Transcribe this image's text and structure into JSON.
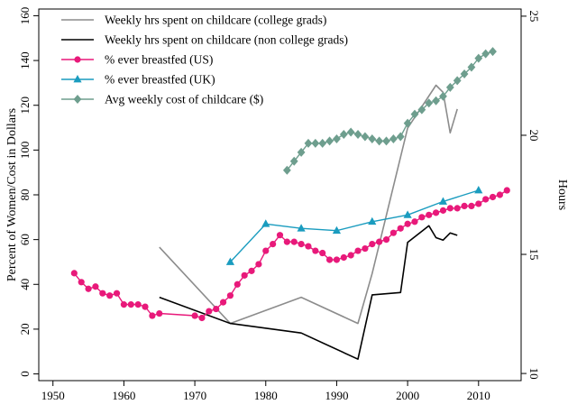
{
  "chart_data": {
    "type": "line",
    "xlabel": "",
    "ylabel_left": "Percent of Women/Cost in Dollars",
    "ylabel_right": "Hours",
    "xlim": [
      1948,
      2016
    ],
    "ylim_left": [
      -3,
      163
    ],
    "ylim_right": [
      9.7,
      25.3
    ],
    "x_ticks": [
      1950,
      1960,
      1970,
      1980,
      1990,
      2000,
      2010
    ],
    "y_ticks_left": [
      0,
      20,
      40,
      60,
      80,
      100,
      120,
      140,
      160
    ],
    "y_ticks_right": [
      10,
      15,
      20,
      25
    ],
    "legend_position": "top-left",
    "grid": false,
    "series": [
      {
        "name": "Weekly hrs spent on childcare (college grads)",
        "axis": "right",
        "color": "#8c8c8c",
        "marker": "none",
        "points": [
          [
            1965,
            15.3
          ],
          [
            1975,
            12.1
          ],
          [
            1985,
            13.2
          ],
          [
            1993,
            12.1
          ],
          [
            1995,
            14.2
          ],
          [
            2000,
            20.3
          ],
          [
            2004,
            22.1
          ],
          [
            2005,
            21.8
          ],
          [
            2006,
            20.1
          ],
          [
            2007,
            21.1
          ]
        ]
      },
      {
        "name": "Weekly hrs spent on childcare (non college grads)",
        "axis": "right",
        "color": "#000000",
        "marker": "none",
        "points": [
          [
            1965,
            13.2
          ],
          [
            1975,
            12.1
          ],
          [
            1985,
            11.7
          ],
          [
            1993,
            10.6
          ],
          [
            1995,
            13.3
          ],
          [
            1999,
            13.4
          ],
          [
            2000,
            15.5
          ],
          [
            2003,
            16.2
          ],
          [
            2004,
            15.7
          ],
          [
            2005,
            15.6
          ],
          [
            2006,
            15.9
          ],
          [
            2007,
            15.8
          ]
        ]
      },
      {
        "name": "% ever breastfed (US)",
        "axis": "left",
        "color": "#e8197a",
        "marker": "circle",
        "points": [
          [
            1953,
            45
          ],
          [
            1954,
            41
          ],
          [
            1955,
            38
          ],
          [
            1956,
            39
          ],
          [
            1957,
            36
          ],
          [
            1958,
            35
          ],
          [
            1959,
            36
          ],
          [
            1960,
            31
          ],
          [
            1961,
            31
          ],
          [
            1962,
            31
          ],
          [
            1963,
            30
          ],
          [
            1964,
            26
          ],
          [
            1965,
            27
          ],
          [
            1970,
            26
          ],
          [
            1971,
            25
          ],
          [
            1972,
            28
          ],
          [
            1973,
            29
          ],
          [
            1974,
            32
          ],
          [
            1975,
            35
          ],
          [
            1976,
            40
          ],
          [
            1977,
            44
          ],
          [
            1978,
            46
          ],
          [
            1979,
            49
          ],
          [
            1980,
            55
          ],
          [
            1981,
            58
          ],
          [
            1982,
            62
          ],
          [
            1983,
            59
          ],
          [
            1984,
            59
          ],
          [
            1985,
            58
          ],
          [
            1986,
            57
          ],
          [
            1987,
            55
          ],
          [
            1988,
            54
          ],
          [
            1989,
            51
          ],
          [
            1990,
            51
          ],
          [
            1991,
            52
          ],
          [
            1992,
            53
          ],
          [
            1993,
            55
          ],
          [
            1994,
            56
          ],
          [
            1995,
            58
          ],
          [
            1996,
            59
          ],
          [
            1997,
            60
          ],
          [
            1998,
            63
          ],
          [
            1999,
            65
          ],
          [
            2000,
            67
          ],
          [
            2001,
            68
          ],
          [
            2002,
            70
          ],
          [
            2003,
            71
          ],
          [
            2004,
            72
          ],
          [
            2005,
            73
          ],
          [
            2006,
            74
          ],
          [
            2007,
            74
          ],
          [
            2008,
            75
          ],
          [
            2009,
            75
          ],
          [
            2010,
            76
          ],
          [
            2011,
            78
          ],
          [
            2012,
            79
          ],
          [
            2013,
            80
          ],
          [
            2014,
            82
          ]
        ]
      },
      {
        "name": "% ever breastfed (UK)",
        "axis": "left",
        "color": "#1a9cbf",
        "marker": "triangle",
        "points": [
          [
            1975,
            50
          ],
          [
            1980,
            67
          ],
          [
            1985,
            65
          ],
          [
            1990,
            64
          ],
          [
            1995,
            68
          ],
          [
            2000,
            71
          ],
          [
            2005,
            77
          ],
          [
            2010,
            82
          ]
        ]
      },
      {
        "name": "Avg weekly cost of childcare ($)",
        "axis": "left",
        "color": "#6e9e8e",
        "marker": "diamond",
        "points": [
          [
            1983,
            91
          ],
          [
            1984,
            95
          ],
          [
            1985,
            99
          ],
          [
            1986,
            103
          ],
          [
            1987,
            103
          ],
          [
            1988,
            103
          ],
          [
            1989,
            104
          ],
          [
            1990,
            105
          ],
          [
            1991,
            107
          ],
          [
            1992,
            108
          ],
          [
            1993,
            107
          ],
          [
            1994,
            106
          ],
          [
            1995,
            105
          ],
          [
            1996,
            104
          ],
          [
            1997,
            104
          ],
          [
            1998,
            105
          ],
          [
            1999,
            106
          ],
          [
            2000,
            112
          ],
          [
            2001,
            116
          ],
          [
            2002,
            118
          ],
          [
            2003,
            121
          ],
          [
            2004,
            122
          ],
          [
            2005,
            124
          ],
          [
            2006,
            128
          ],
          [
            2007,
            131
          ],
          [
            2008,
            134
          ],
          [
            2009,
            137
          ],
          [
            2010,
            141
          ],
          [
            2011,
            143
          ],
          [
            2012,
            144
          ]
        ]
      }
    ]
  }
}
